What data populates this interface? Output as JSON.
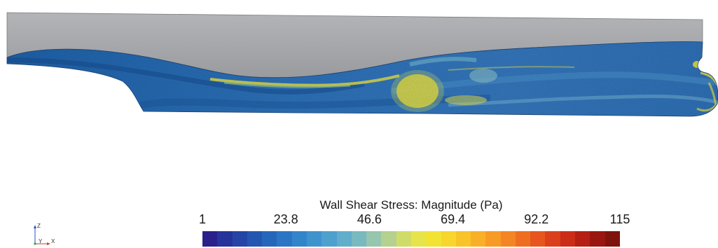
{
  "legend": {
    "title": "Wall Shear Stress: Magnitude (Pa)",
    "ticks": [
      "1",
      "23.8",
      "46.6",
      "69.4",
      "92.2",
      "115"
    ],
    "colors": [
      "#2b1f8c",
      "#26339a",
      "#2445a6",
      "#2356b1",
      "#2566bb",
      "#2a76c4",
      "#3385ca",
      "#3f93cd",
      "#4ea1cd",
      "#60aecb",
      "#78bac0",
      "#96c6ad",
      "#b4d18f",
      "#d0dc6a",
      "#e6e44a",
      "#f2e332",
      "#f7d62d",
      "#f9c42a",
      "#f9b028",
      "#f79b26",
      "#f48524",
      "#ef6d21",
      "#e7561e",
      "#dc401b",
      "#cc2d18",
      "#b51f14",
      "#9a1710",
      "#7f140c"
    ]
  },
  "triad": {
    "z": "Z",
    "y": "Y",
    "x": "X"
  },
  "colors": {
    "background": "#ffffff",
    "waterline_surface": "#a9aaad",
    "hull_base": "#2a6fb8",
    "high_stress": "#e8df3a"
  }
}
